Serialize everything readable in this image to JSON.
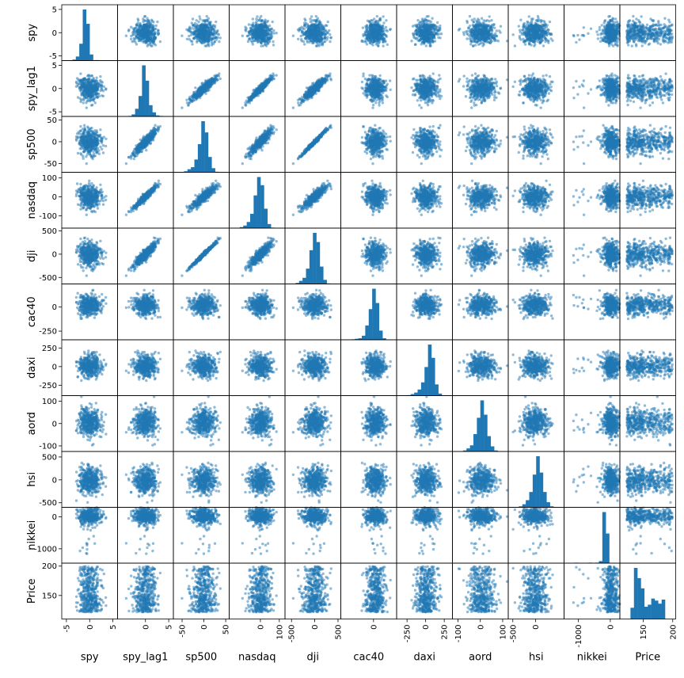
{
  "chart_data": {
    "type": "scatter-matrix",
    "title": "",
    "variables": [
      "spy",
      "spy_lag1",
      "sp500",
      "nasdaq",
      "dji",
      "cac40",
      "daxi",
      "aord",
      "hsi",
      "nikkei",
      "Price"
    ],
    "color": "#1f77b4",
    "point_alpha": 0.5,
    "grid": false,
    "ranges": {
      "spy": [
        -6,
        6
      ],
      "spy_lag1": [
        -6,
        6
      ],
      "sp500": [
        -70,
        58
      ],
      "nasdaq": [
        -165,
        130
      ],
      "dji": [
        -640,
        560
      ],
      "cac40": [
        -340,
        240
      ],
      "daxi": [
        -390,
        360
      ],
      "aord": [
        -125,
        125
      ],
      "hsi": [
        -600,
        620
      ],
      "nikkei": [
        -1450,
        300
      ],
      "Price": [
        110,
        205
      ]
    },
    "left_ticks": {
      "spy": [
        "5",
        "0",
        "-5"
      ],
      "spy_lag1": [
        "5",
        "0",
        "-5"
      ],
      "sp500": [
        "50",
        "0",
        "-50"
      ],
      "nasdaq": [
        "100",
        "0",
        "-100"
      ],
      "dji": [
        "500",
        "0",
        "-500"
      ],
      "cac40": [
        "0",
        "-250"
      ],
      "daxi": [
        "250",
        "0",
        "-250"
      ],
      "aord": [
        "100",
        "0",
        "-100"
      ],
      "hsi": [
        "500",
        "0",
        "-500"
      ],
      "nikkei": [
        "0",
        "-1000"
      ],
      "Price": [
        "200",
        "150"
      ]
    },
    "bottom_ticks": {
      "spy": [
        "-5",
        "0",
        "5"
      ],
      "spy_lag1": [
        "0",
        "5"
      ],
      "sp500": [
        "-50",
        "0",
        "50"
      ],
      "nasdaq": [
        "0",
        "100"
      ],
      "dji": [
        "-500",
        "0",
        "500"
      ],
      "cac40": [
        "0"
      ],
      "daxi": [
        "-250",
        "0",
        "250"
      ],
      "aord": [
        "-100",
        "0",
        "100"
      ],
      "hsi": [
        "-500",
        "0"
      ],
      "nikkei": [
        "-1000",
        "0"
      ],
      "Price": [
        "150",
        "200"
      ]
    },
    "histograms": {
      "spy": [
        2,
        8,
        33,
        100,
        72,
        12,
        1,
        1,
        0,
        0
      ],
      "spy_lag1": [
        1,
        4,
        15,
        40,
        100,
        70,
        22,
        8,
        2,
        1
      ],
      "sp500": [
        2,
        6,
        10,
        25,
        55,
        100,
        78,
        30,
        8,
        1
      ],
      "nasdaq": [
        2,
        5,
        12,
        28,
        64,
        100,
        84,
        38,
        8,
        1
      ],
      "dji": [
        2,
        6,
        12,
        30,
        66,
        100,
        82,
        34,
        8,
        1
      ],
      "cac40": [
        1,
        2,
        3,
        8,
        28,
        60,
        100,
        72,
        18,
        3
      ],
      "daxi": [
        1,
        3,
        6,
        12,
        26,
        56,
        100,
        74,
        22,
        4
      ],
      "aord": [
        2,
        6,
        12,
        34,
        66,
        100,
        72,
        30,
        10,
        2
      ],
      "hsi": [
        2,
        6,
        14,
        30,
        64,
        100,
        68,
        30,
        10,
        2
      ],
      "nikkei": [
        1,
        0,
        0,
        0,
        1,
        0,
        1,
        4,
        100,
        58
      ],
      "Price": [
        22,
        100,
        80,
        60,
        24,
        28,
        40,
        36,
        30,
        38
      ]
    },
    "correlations": {
      "spy_lag1|sp500": 0.88,
      "spy_lag1|nasdaq": 0.94,
      "spy_lag1|dji": 0.85,
      "sp500|nasdaq": 0.9,
      "sp500|dji": 0.98,
      "nasdaq|dji": 0.86
    }
  }
}
